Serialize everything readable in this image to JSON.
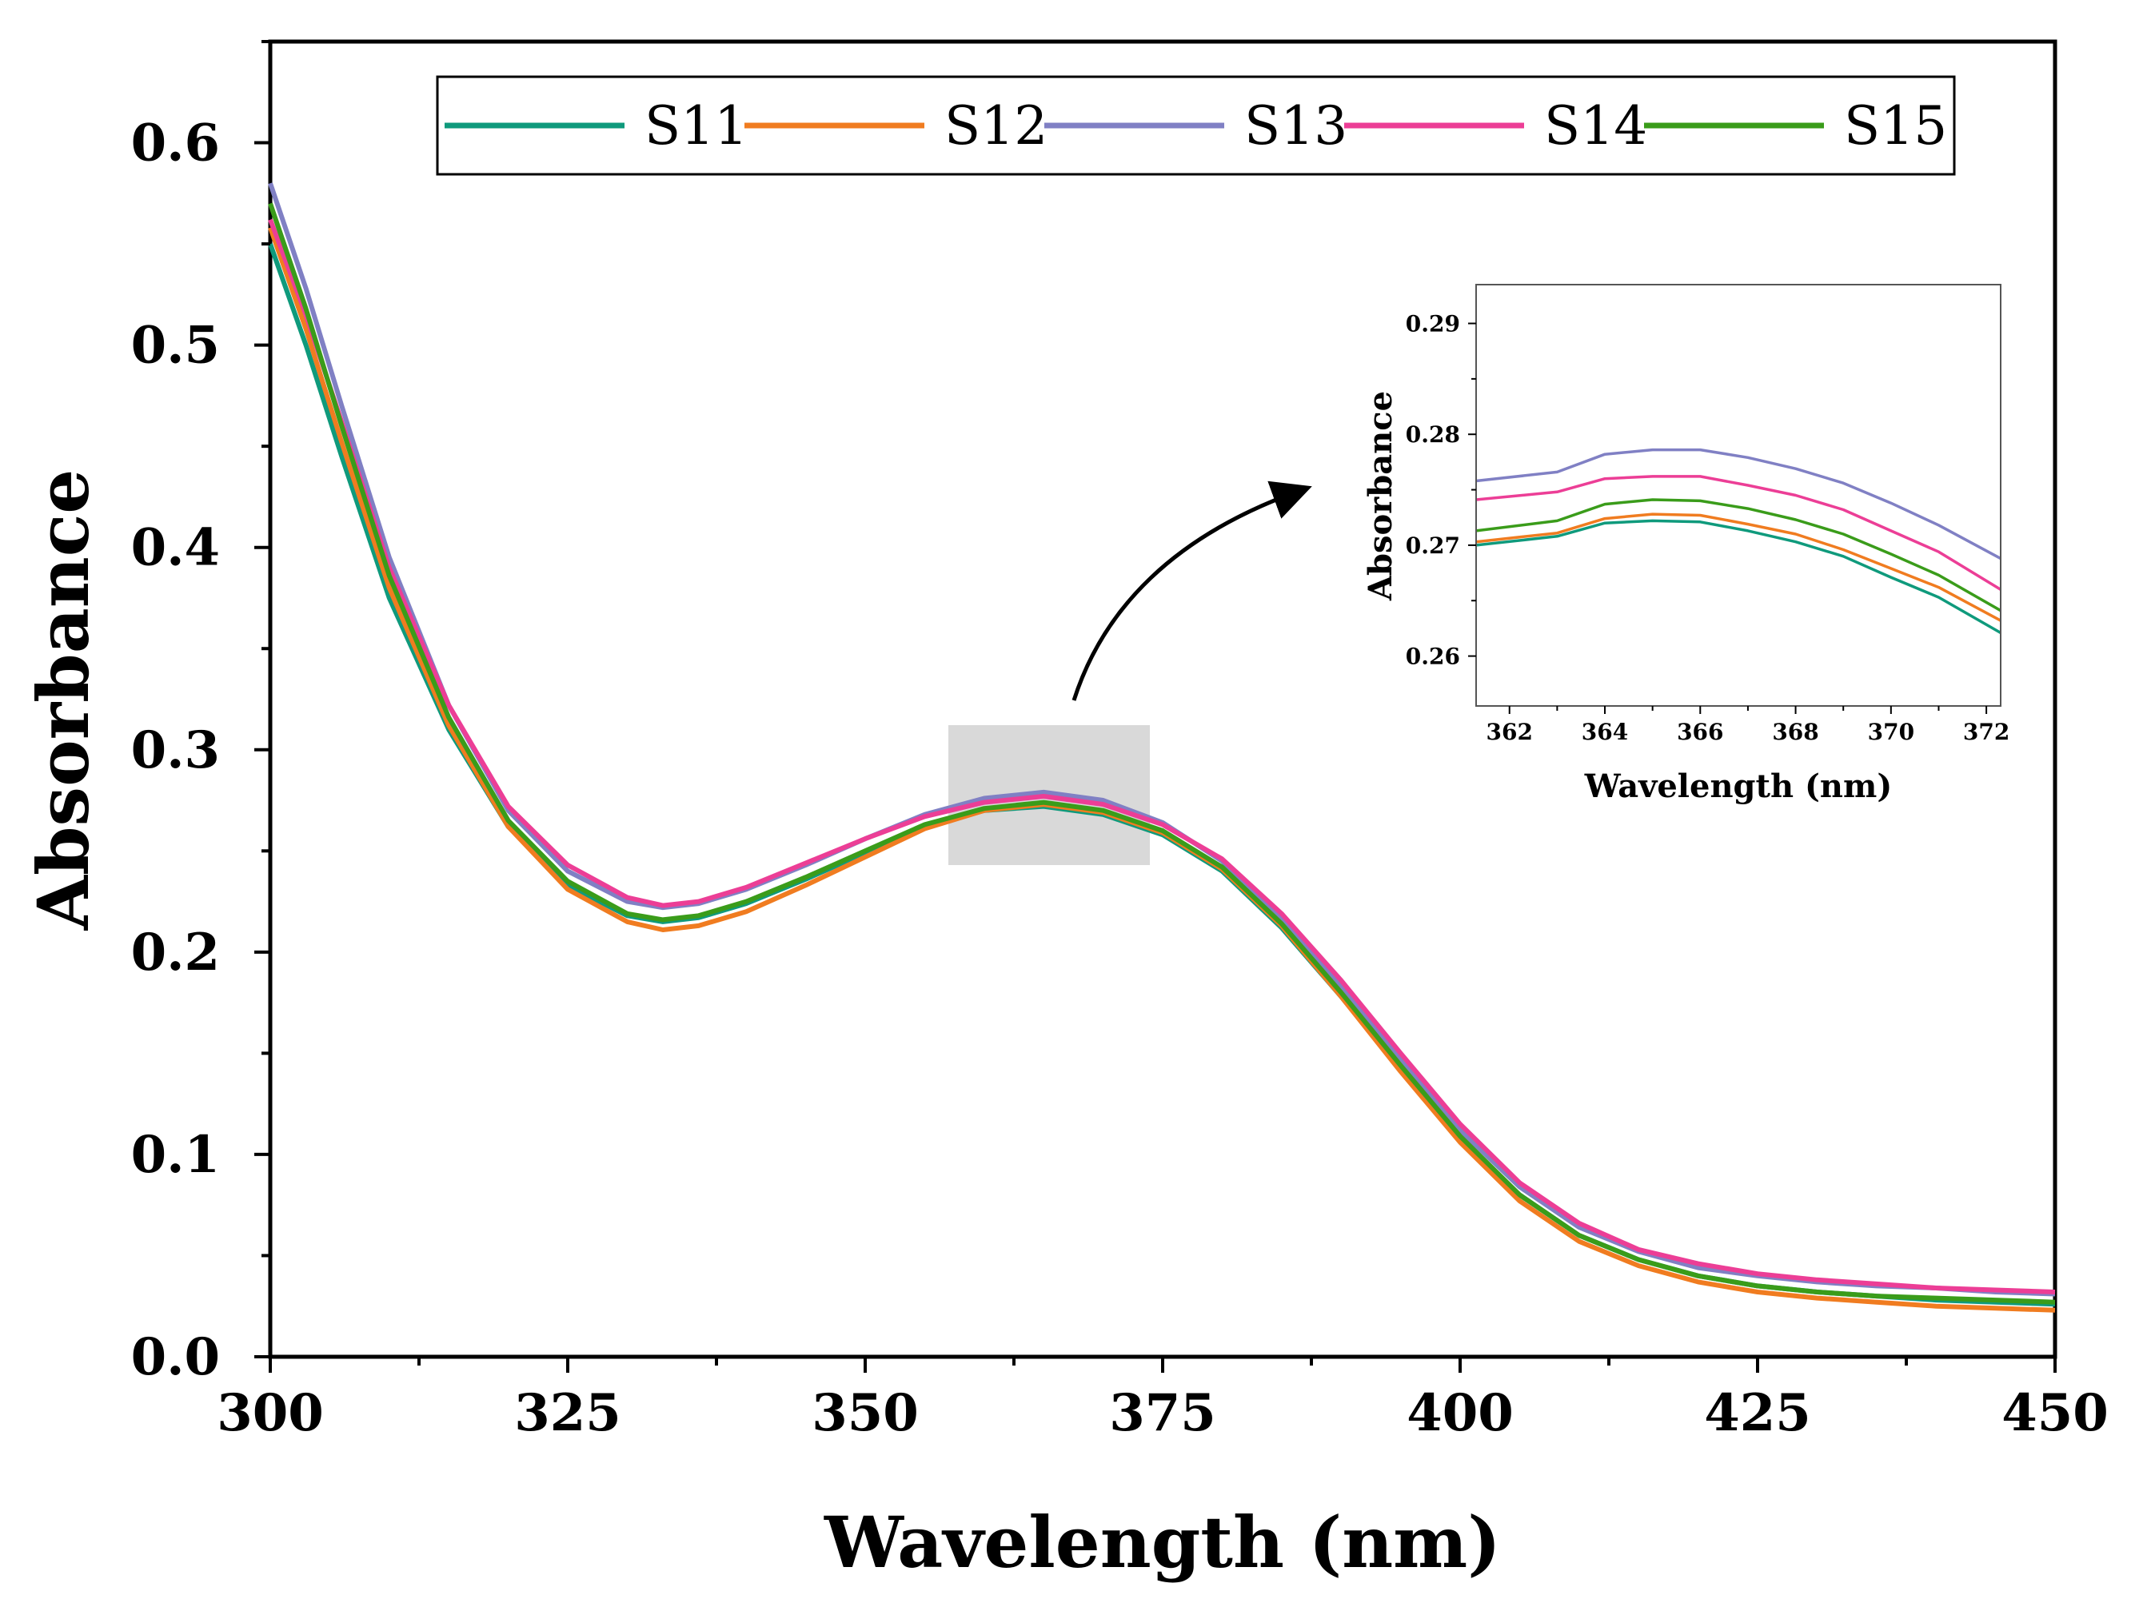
{
  "chart_data": {
    "type": "line",
    "xlabel": "Wavelength (nm)",
    "ylabel": "Absorbance",
    "xlim": [
      300,
      450
    ],
    "ylim": [
      0,
      0.65
    ],
    "x_ticks": [
      "300",
      "325",
      "350",
      "375",
      "400",
      "425",
      "450"
    ],
    "y_ticks": [
      "0.0",
      "0.1",
      "0.2",
      "0.3",
      "0.4",
      "0.5",
      "0.6"
    ],
    "legend": "top",
    "x": [
      300,
      303,
      306,
      310,
      315,
      320,
      325,
      330,
      333,
      336,
      340,
      345,
      350,
      355,
      360,
      365,
      370,
      375,
      380,
      385,
      390,
      395,
      400,
      405,
      410,
      415,
      420,
      425,
      430,
      435,
      440,
      445,
      450
    ],
    "series": [
      {
        "name": "S11",
        "color": "#0f9a7c",
        "values": [
          0.55,
          0.5,
          0.445,
          0.375,
          0.31,
          0.262,
          0.233,
          0.218,
          0.215,
          0.217,
          0.224,
          0.236,
          0.249,
          0.262,
          0.27,
          0.272,
          0.268,
          0.258,
          0.24,
          0.212,
          0.178,
          0.142,
          0.108,
          0.08,
          0.06,
          0.048,
          0.04,
          0.035,
          0.032,
          0.03,
          0.028,
          0.027,
          0.026
        ]
      },
      {
        "name": "S12",
        "color": "#f07c20",
        "values": [
          0.558,
          0.508,
          0.452,
          0.38,
          0.312,
          0.262,
          0.231,
          0.215,
          0.211,
          0.213,
          0.22,
          0.233,
          0.247,
          0.261,
          0.27,
          0.273,
          0.269,
          0.259,
          0.241,
          0.213,
          0.178,
          0.141,
          0.106,
          0.077,
          0.057,
          0.045,
          0.037,
          0.032,
          0.029,
          0.027,
          0.025,
          0.024,
          0.023
        ]
      },
      {
        "name": "S13",
        "color": "#8080c4",
        "values": [
          0.58,
          0.528,
          0.47,
          0.395,
          0.322,
          0.27,
          0.24,
          0.225,
          0.222,
          0.224,
          0.231,
          0.243,
          0.256,
          0.268,
          0.276,
          0.279,
          0.275,
          0.264,
          0.245,
          0.217,
          0.183,
          0.147,
          0.112,
          0.084,
          0.064,
          0.052,
          0.044,
          0.04,
          0.037,
          0.035,
          0.034,
          0.032,
          0.031
        ]
      },
      {
        "name": "S14",
        "color": "#ec3e96",
        "values": [
          0.562,
          0.515,
          0.462,
          0.39,
          0.322,
          0.272,
          0.243,
          0.227,
          0.223,
          0.225,
          0.232,
          0.244,
          0.256,
          0.267,
          0.274,
          0.277,
          0.273,
          0.263,
          0.246,
          0.219,
          0.186,
          0.15,
          0.115,
          0.086,
          0.066,
          0.053,
          0.046,
          0.041,
          0.038,
          0.036,
          0.034,
          0.033,
          0.032
        ]
      },
      {
        "name": "S15",
        "color": "#3a9c1a",
        "values": [
          0.57,
          0.518,
          0.46,
          0.386,
          0.316,
          0.265,
          0.235,
          0.219,
          0.216,
          0.218,
          0.225,
          0.237,
          0.25,
          0.263,
          0.271,
          0.274,
          0.27,
          0.26,
          0.242,
          0.214,
          0.18,
          0.144,
          0.109,
          0.08,
          0.06,
          0.048,
          0.04,
          0.035,
          0.032,
          0.03,
          0.029,
          0.028,
          0.027
        ]
      }
    ],
    "inset": {
      "xlabel": "Wavelength (nm)",
      "ylabel": "Absorbance",
      "xlim": [
        361.3,
        372.3
      ],
      "ylim": [
        0.2555,
        0.2935
      ],
      "x_ticks": [
        "362",
        "364",
        "366",
        "368",
        "370",
        "372"
      ],
      "y_ticks": [
        "0.26",
        "0.27",
        "0.28",
        "0.29"
      ],
      "x": [
        361.3,
        363,
        364,
        365,
        366,
        367,
        368,
        369,
        370,
        371,
        372.3
      ],
      "series": [
        {
          "name": "S11",
          "color": "#0f9a7c",
          "values": [
            0.27,
            0.2708,
            0.272,
            0.2722,
            0.2721,
            0.2713,
            0.2703,
            0.269,
            0.2671,
            0.2653,
            0.2621
          ]
        },
        {
          "name": "S12",
          "color": "#f07c20",
          "values": [
            0.2703,
            0.2711,
            0.2724,
            0.2728,
            0.2727,
            0.2719,
            0.271,
            0.2696,
            0.2679,
            0.2662,
            0.2632
          ]
        },
        {
          "name": "S13",
          "color": "#8080c4",
          "values": [
            0.2758,
            0.2766,
            0.2782,
            0.2786,
            0.2786,
            0.2779,
            0.2769,
            0.2756,
            0.2738,
            0.2718,
            0.2688
          ]
        },
        {
          "name": "S14",
          "color": "#ec3e96",
          "values": [
            0.2741,
            0.2748,
            0.276,
            0.2762,
            0.2762,
            0.2754,
            0.2745,
            0.2732,
            0.2713,
            0.2694,
            0.266
          ]
        },
        {
          "name": "S15",
          "color": "#3a9c1a",
          "values": [
            0.2713,
            0.2722,
            0.2737,
            0.2741,
            0.274,
            0.2733,
            0.2723,
            0.271,
            0.2692,
            0.2673,
            0.2641
          ]
        }
      ]
    }
  }
}
